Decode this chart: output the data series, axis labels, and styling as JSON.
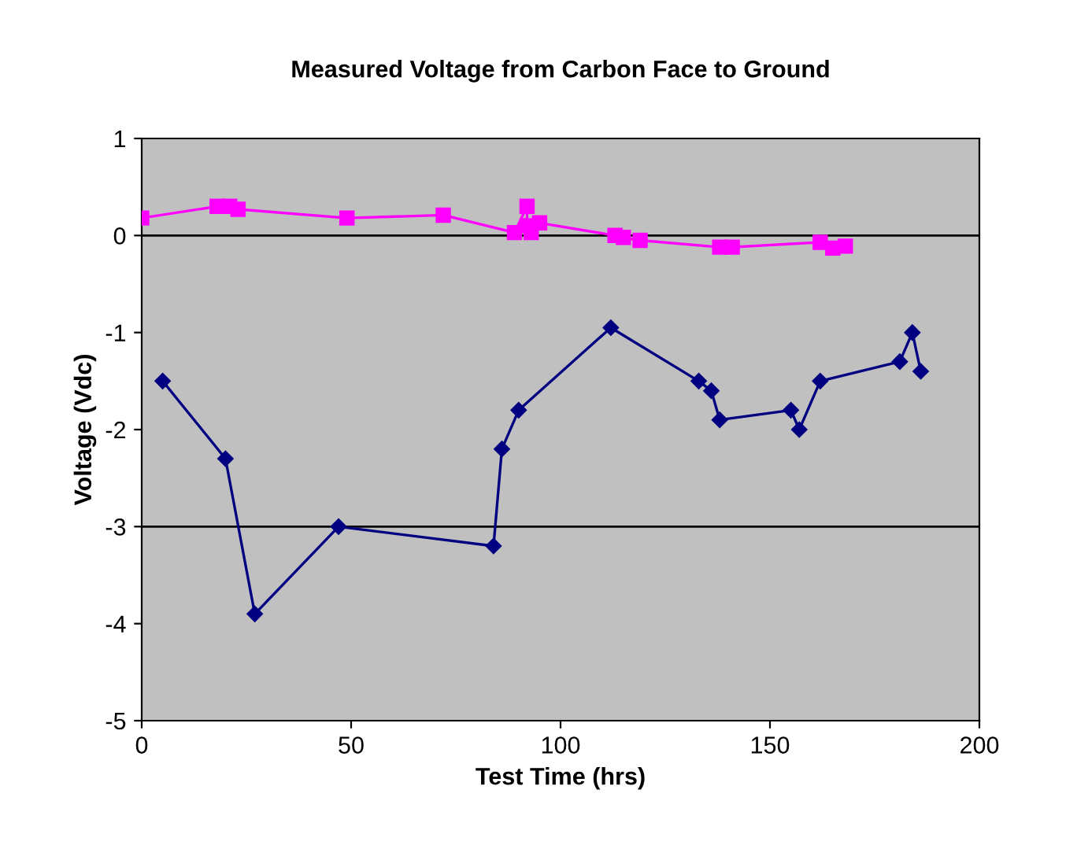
{
  "chart_data": {
    "type": "line",
    "title": "Measured Voltage from Carbon Face to Ground",
    "xlabel": "Test Time (hrs)",
    "ylabel": "Voltage (Vdc)",
    "series": [
      {
        "color": "#ff00ff",
        "marker": "square",
        "x": [
          0,
          18,
          21,
          23,
          49,
          72,
          89,
          92,
          92,
          93,
          95,
          113,
          115,
          119,
          138,
          141,
          162,
          165,
          168
        ],
        "values": [
          0.18,
          0.3,
          0.3,
          0.27,
          0.18,
          0.21,
          0.03,
          0.3,
          0.1,
          0.03,
          0.13,
          0.0,
          -0.02,
          -0.05,
          -0.12,
          -0.12,
          -0.07,
          -0.13,
          -0.11
        ]
      },
      {
        "color": "#000080",
        "marker": "diamond",
        "x": [
          5,
          20,
          27,
          47,
          84,
          86,
          90,
          112,
          133,
          136,
          138,
          155,
          157,
          162,
          181,
          184,
          186
        ],
        "values": [
          -1.5,
          -2.3,
          -3.9,
          -3.0,
          -3.2,
          -2.2,
          -1.8,
          -0.95,
          -1.5,
          -1.6,
          -1.9,
          -1.8,
          -2.0,
          -1.5,
          -1.3,
          -1.0,
          -1.4
        ]
      }
    ],
    "xlim": [
      0,
      200
    ],
    "xticks": [
      0,
      50,
      100,
      150,
      200
    ],
    "ylim": [
      -5,
      1
    ],
    "yticks": [
      -5,
      -4,
      -3,
      -2,
      -1,
      0,
      1
    ],
    "ref_lines": [
      {
        "axis": "y",
        "value": 0,
        "color": "#000000"
      },
      {
        "axis": "y",
        "value": -3,
        "color": "#000000"
      }
    ],
    "grid": false,
    "legend": false
  }
}
